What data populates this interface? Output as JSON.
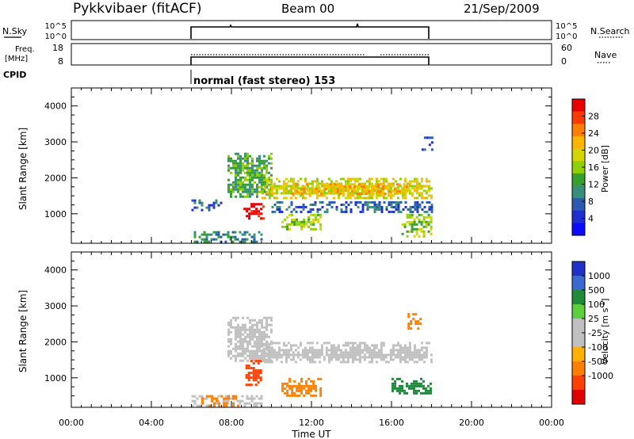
{
  "header": {
    "title": "Pykkvibaer (fitACF)",
    "beam": "Beam 00",
    "date": "21/Sep/2009"
  },
  "strips": {
    "nsky_label": "N.Sky",
    "nsky_ticks_left": [
      "10^5",
      "10^0"
    ],
    "nsky_ticks_right": [
      "10^5",
      "10^0"
    ],
    "nsearch_label": "N.Search",
    "freq_label_line1": "Freq.",
    "freq_label_line2": "[MHz]",
    "freq_ticks_left": [
      "18",
      "8"
    ],
    "nave_label": "Nave",
    "nave_ticks_right": [
      "60",
      "0"
    ],
    "cpid_label": "CPID",
    "cpid_text": "normal (fast stereo) 153"
  },
  "axes": {
    "xlabel": "Time UT",
    "ylabel": "Slant Range [km]",
    "x_ticks": [
      "00:00",
      "04:00",
      "08:00",
      "12:00",
      "16:00",
      "20:00",
      "00:00"
    ],
    "y_ticks": [
      "1000",
      "2000",
      "3000",
      "4000"
    ]
  },
  "colorbars": {
    "power_label": "Power [dB]",
    "power_ticks": [
      "28",
      "24",
      "20",
      "16",
      "12",
      "8",
      "4"
    ],
    "velocity_label": "Velocity [m s",
    "velocity_label_sup": "-1",
    "velocity_label_end": "]",
    "velocity_ticks": [
      "1000",
      "500",
      "100",
      "25",
      "-25",
      "-100",
      "-500",
      "-1000"
    ]
  },
  "colors": {
    "power_scale": [
      "#e80000",
      "#ff3a00",
      "#ff7e00",
      "#ffb400",
      "#d4d400",
      "#8fd000",
      "#36a02c",
      "#3a8f7a",
      "#2b5bb0",
      "#1e2ed0",
      "#0b0bff"
    ],
    "velocity_scale": [
      "#2030c8",
      "#3b6ad0",
      "#1f8a3a",
      "#5bd03c",
      "#c0c0c0",
      "#c0c0c0",
      "#ffb000",
      "#ff8000",
      "#ff4000",
      "#e00000"
    ]
  },
  "chart_data": {
    "type": "heatmap",
    "x_unit": "hours UT",
    "y_unit": "km",
    "xlim": [
      0,
      24
    ],
    "ylim": [
      180,
      4500
    ],
    "operating_window_hours": [
      6,
      18
    ],
    "power_clim_db": [
      0,
      32
    ],
    "velocity_clim_ms": [
      -1500,
      1500
    ],
    "power_regions": [
      {
        "t0": 6.0,
        "t1": 9.5,
        "r0": 200,
        "r1": 520,
        "level": 3
      },
      {
        "t0": 6.0,
        "t1": 7.5,
        "r0": 1100,
        "r1": 1400,
        "level": 2
      },
      {
        "t0": 7.8,
        "t1": 10.0,
        "r0": 1500,
        "r1": 2700,
        "level": 4
      },
      {
        "t0": 8.6,
        "t1": 9.6,
        "r0": 850,
        "r1": 1300,
        "level": 10
      },
      {
        "t0": 9.5,
        "t1": 18.0,
        "r0": 1450,
        "r1": 2000,
        "level": 6
      },
      {
        "t0": 11.0,
        "t1": 17.0,
        "r0": 1550,
        "r1": 1850,
        "level": 7
      },
      {
        "t0": 10.5,
        "t1": 12.5,
        "r0": 550,
        "r1": 1000,
        "level": 5
      },
      {
        "t0": 16.5,
        "t1": 18.0,
        "r0": 400,
        "r1": 1000,
        "level": 5
      },
      {
        "t0": 10.0,
        "t1": 18.0,
        "r0": 1050,
        "r1": 1350,
        "level": 2
      },
      {
        "t0": 17.5,
        "t1": 18.0,
        "r0": 2800,
        "r1": 3150,
        "level": 2
      }
    ],
    "velocity_regions": [
      {
        "t0": 6.0,
        "t1": 9.5,
        "r0": 200,
        "r1": 520,
        "v": 0
      },
      {
        "t0": 7.8,
        "t1": 10.0,
        "r0": 1500,
        "r1": 2700,
        "v": 0
      },
      {
        "t0": 8.7,
        "t1": 9.5,
        "r0": 800,
        "r1": 1500,
        "v": -700
      },
      {
        "t0": 9.5,
        "t1": 18.0,
        "r0": 1450,
        "r1": 2000,
        "v": 0
      },
      {
        "t0": 10.5,
        "t1": 12.5,
        "r0": 500,
        "r1": 1000,
        "v": -150
      },
      {
        "t0": 16.0,
        "t1": 18.0,
        "r0": 550,
        "r1": 1000,
        "v": 150
      },
      {
        "t0": 6.5,
        "t1": 8.5,
        "r0": 250,
        "r1": 520,
        "v": -150
      },
      {
        "t0": 16.8,
        "t1": 17.5,
        "r0": 2400,
        "r1": 2800,
        "v": -300
      }
    ]
  }
}
